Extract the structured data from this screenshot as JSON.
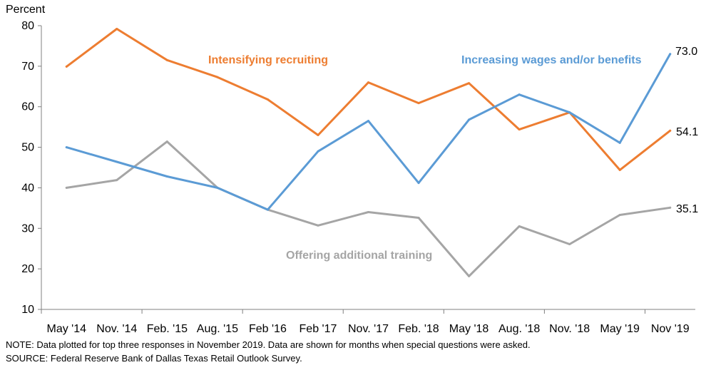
{
  "chart_data": {
    "type": "line",
    "ylabel": "Percent",
    "ylim": [
      10,
      80
    ],
    "yticks": [
      10,
      20,
      30,
      40,
      50,
      60,
      70,
      80
    ],
    "grid": false,
    "categories": [
      "May '14",
      "Nov. '14",
      "Feb. '15",
      "Aug. '15",
      "Feb '16",
      "Feb '17",
      "Nov. '17",
      "Feb. '18",
      "May '18",
      "Aug. '18",
      "Nov. '18",
      "May '19",
      "Nov '19"
    ],
    "series": [
      {
        "name": "Intensifying recruiting",
        "color": "#ED7D31",
        "values": [
          69.9,
          79.2,
          71.5,
          67.3,
          61.8,
          53.0,
          66.0,
          60.9,
          65.8,
          54.4,
          58.6,
          44.4,
          54.1
        ],
        "end_label": "54.1"
      },
      {
        "name": "Increasing wages and/or benefits",
        "color": "#5B9BD5",
        "values": [
          50.0,
          46.4,
          42.8,
          40.0,
          34.6,
          49.0,
          56.5,
          41.2,
          56.8,
          63.0,
          58.6,
          51.1,
          73.0
        ],
        "end_label": "73.0"
      },
      {
        "name": "Offering additional training",
        "color": "#A5A5A5",
        "values": [
          40.0,
          41.9,
          51.4,
          40.0,
          34.6,
          30.7,
          34.0,
          32.6,
          18.2,
          30.5,
          26.1,
          33.3,
          35.1
        ],
        "end_label": "35.1"
      }
    ]
  },
  "notes": {
    "note": "NOTE: Data plotted for top three responses in November 2019. Data are shown for months when special questions were asked.",
    "source": "SOURCE: Federal Reserve Bank of Dallas Texas Retail Outlook Survey."
  }
}
